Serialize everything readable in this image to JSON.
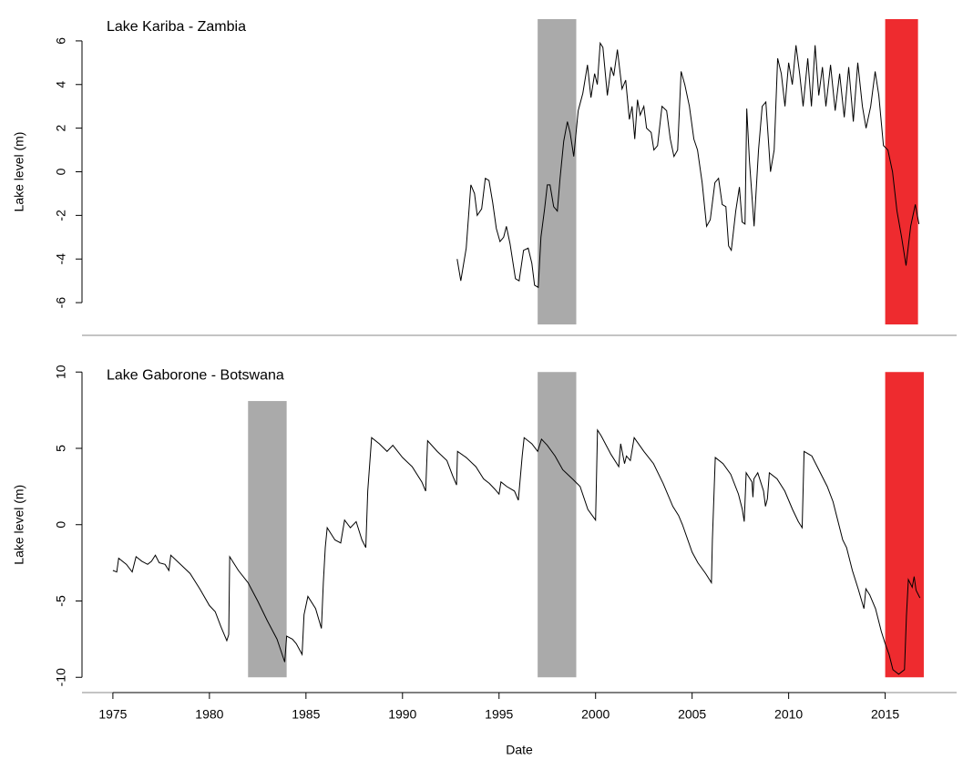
{
  "chart_data": [
    {
      "type": "line",
      "annotation": "Lake Kariba - Zambia",
      "ylabel": "Lake level (m)",
      "xlim": [
        1973.4,
        2018.7
      ],
      "ylim": [
        -7.5,
        7.5
      ],
      "yticks": [
        -6,
        -4,
        -2,
        0,
        2,
        4,
        6
      ],
      "x": [
        1992.83,
        1993.02,
        1993.3,
        1993.54,
        1993.73,
        1993.87,
        1994.1,
        1994.29,
        1994.48,
        1994.67,
        1994.86,
        1995.05,
        1995.24,
        1995.38,
        1995.57,
        1995.85,
        1996.04,
        1996.27,
        1996.51,
        1996.7,
        1996.84,
        1997.03,
        1997.17,
        1997.36,
        1997.5,
        1997.64,
        1997.83,
        1998.02,
        1998.16,
        1998.35,
        1998.54,
        1998.68,
        1998.87,
        1999.1,
        1999.34,
        1999.58,
        1999.76,
        1999.95,
        2000.09,
        2000.24,
        2000.38,
        2000.61,
        2000.8,
        2000.94,
        2001.13,
        2001.37,
        2001.56,
        2001.75,
        2001.89,
        2002.03,
        2002.17,
        2002.31,
        2002.5,
        2002.64,
        2002.88,
        2003.02,
        2003.21,
        2003.44,
        2003.68,
        2003.87,
        2004.06,
        2004.25,
        2004.43,
        2004.62,
        2004.86,
        2005.09,
        2005.28,
        2005.52,
        2005.75,
        2005.94,
        2006.18,
        2006.37,
        2006.56,
        2006.75,
        2006.89,
        2007.03,
        2007.26,
        2007.45,
        2007.59,
        2007.74,
        2007.83,
        2007.97,
        2008.21,
        2008.44,
        2008.63,
        2008.82,
        2009.06,
        2009.25,
        2009.43,
        2009.62,
        2009.81,
        2010.0,
        2010.19,
        2010.38,
        2010.57,
        2010.75,
        2010.99,
        2011.18,
        2011.37,
        2011.56,
        2011.75,
        2011.93,
        2012.17,
        2012.41,
        2012.64,
        2012.88,
        2013.11,
        2013.35,
        2013.58,
        2013.82,
        2014.01,
        2014.25,
        2014.48,
        2014.67,
        2014.91,
        2015.14,
        2015.38,
        2015.61,
        2015.85,
        2016.08,
        2016.32,
        2016.56,
        2016.75
      ],
      "series": [
        {
          "color": "#000000",
          "values": [
            -4.0,
            -5.0,
            -3.5,
            -0.6,
            -1.0,
            -2.0,
            -1.7,
            -0.3,
            -0.4,
            -1.4,
            -2.6,
            -3.2,
            -3.0,
            -2.5,
            -3.3,
            -4.9,
            -5.0,
            -3.6,
            -3.5,
            -4.2,
            -5.2,
            -5.3,
            -3.0,
            -1.7,
            -0.6,
            -0.6,
            -1.6,
            -1.8,
            -0.3,
            1.4,
            2.3,
            1.8,
            0.7,
            2.8,
            3.6,
            4.9,
            3.4,
            4.5,
            4.0,
            5.9,
            5.7,
            3.5,
            4.8,
            4.4,
            5.6,
            3.8,
            4.2,
            2.4,
            3.0,
            1.5,
            3.3,
            2.6,
            3.0,
            2.0,
            1.8,
            1.0,
            1.2,
            3.0,
            2.8,
            1.5,
            0.7,
            1.0,
            4.6,
            4.0,
            3.0,
            1.5,
            1.0,
            -0.5,
            -2.5,
            -2.2,
            -0.5,
            -0.3,
            -1.5,
            -1.6,
            -3.4,
            -3.6,
            -1.8,
            -0.7,
            -2.3,
            -2.4,
            2.9,
            0.5,
            -2.5,
            1.0,
            3.0,
            3.2,
            0.0,
            1.0,
            5.2,
            4.5,
            3.0,
            5.0,
            4.0,
            5.8,
            4.5,
            3.0,
            5.2,
            3.0,
            5.8,
            3.5,
            4.8,
            3.0,
            4.9,
            2.8,
            4.5,
            2.5,
            4.8,
            2.3,
            5.0,
            3.0,
            2.0,
            3.0,
            4.6,
            3.5,
            1.2,
            1.0,
            0.0,
            -1.8,
            -3.0,
            -4.3,
            -2.5,
            -1.5,
            -2.4
          ]
        }
      ],
      "spans": [
        {
          "x": [
            1997,
            1999
          ],
          "y": [
            -7,
            7
          ],
          "color": "#aaaaaa"
        },
        {
          "x": [
            2015,
            2016.7
          ],
          "y": [
            -7,
            7
          ],
          "color": "#ee2b2f"
        }
      ]
    },
    {
      "type": "line",
      "annotation": "Lake Gaborone - Botswana",
      "ylabel": "Lake level (m)",
      "xlabel": "Date",
      "xlim": [
        1973.4,
        2018.7
      ],
      "ylim": [
        -11,
        11
      ],
      "yticks": [
        -10,
        -5,
        0,
        5,
        10
      ],
      "xticks": [
        1975,
        1980,
        1985,
        1990,
        1995,
        2000,
        2005,
        2010,
        2015
      ],
      "x": [
        1975.0,
        1975.2,
        1975.3,
        1975.7,
        1976.0,
        1976.2,
        1976.5,
        1976.8,
        1977.0,
        1977.2,
        1977.4,
        1977.7,
        1977.9,
        1978.0,
        1978.5,
        1979.0,
        1979.5,
        1980.0,
        1980.3,
        1980.6,
        1980.9,
        1981.0,
        1981.05,
        1981.5,
        1982.0,
        1982.5,
        1983.0,
        1983.5,
        1983.9,
        1984.0,
        1984.3,
        1984.5,
        1984.8,
        1984.9,
        1985.1,
        1985.5,
        1985.8,
        1985.9,
        1986.0,
        1986.1,
        1986.5,
        1986.8,
        1987.0,
        1987.3,
        1987.6,
        1987.9,
        1988.1,
        1988.2,
        1988.4,
        1988.8,
        1989.2,
        1989.5,
        1990.0,
        1990.5,
        1991.0,
        1991.2,
        1991.3,
        1991.8,
        1992.3,
        1992.6,
        1992.8,
        1992.85,
        1993.3,
        1993.8,
        1994.2,
        1994.5,
        1994.8,
        1995.0,
        1995.1,
        1995.4,
        1995.8,
        1996.0,
        1996.2,
        1996.3,
        1996.7,
        1997.0,
        1997.2,
        1997.5,
        1997.9,
        1998.3,
        1998.8,
        1999.2,
        1999.6,
        2000.0,
        2000.1,
        2000.3,
        2000.8,
        2001.2,
        2001.3,
        2001.5,
        2001.6,
        2001.8,
        2002.0,
        2002.5,
        2003.0,
        2003.5,
        2004.0,
        2004.3,
        2004.5,
        2005.0,
        2005.3,
        2005.7,
        2006.0,
        2006.05,
        2006.2,
        2006.6,
        2007.0,
        2007.4,
        2007.6,
        2007.7,
        2007.8,
        2008.1,
        2008.15,
        2008.2,
        2008.4,
        2008.7,
        2008.8,
        2008.9,
        2009.0,
        2009.4,
        2009.8,
        2010.2,
        2010.5,
        2010.7,
        2010.8,
        2011.2,
        2011.6,
        2012.0,
        2012.3,
        2012.5,
        2012.8,
        2013.0,
        2013.3,
        2013.6,
        2013.9,
        2014.0,
        2014.2,
        2014.5,
        2014.8,
        2015.0,
        2015.2,
        2015.4,
        2015.7,
        2016.0,
        2016.1,
        2016.2,
        2016.4,
        2016.5,
        2016.6,
        2016.8
      ],
      "series": [
        {
          "color": "#000000",
          "values": [
            -3.0,
            -3.1,
            -2.2,
            -2.6,
            -3.1,
            -2.1,
            -2.4,
            -2.6,
            -2.4,
            -2.0,
            -2.5,
            -2.6,
            -3.0,
            -2.0,
            -2.6,
            -3.2,
            -4.2,
            -5.3,
            -5.7,
            -6.7,
            -7.6,
            -7.2,
            -2.1,
            -3.0,
            -3.8,
            -5.0,
            -6.3,
            -7.5,
            -9.0,
            -7.3,
            -7.5,
            -7.8,
            -8.5,
            -5.9,
            -4.7,
            -5.5,
            -6.8,
            -3.8,
            -1.5,
            -0.2,
            -1.0,
            -1.2,
            0.3,
            -0.2,
            0.2,
            -1.0,
            -1.5,
            2.2,
            5.7,
            5.3,
            4.8,
            5.2,
            4.4,
            3.8,
            2.8,
            2.2,
            5.5,
            4.8,
            4.2,
            3.2,
            2.6,
            4.8,
            4.4,
            3.8,
            3.0,
            2.7,
            2.3,
            2.0,
            2.8,
            2.5,
            2.2,
            1.6,
            4.5,
            5.7,
            5.3,
            4.8,
            5.6,
            5.2,
            4.5,
            3.6,
            3.0,
            2.5,
            1.0,
            0.3,
            6.2,
            5.8,
            4.6,
            3.8,
            5.3,
            4.0,
            4.5,
            4.2,
            5.7,
            4.8,
            4.0,
            2.7,
            1.2,
            0.6,
            0.0,
            -1.8,
            -2.5,
            -3.2,
            -3.8,
            -1.0,
            4.4,
            4.0,
            3.3,
            2.0,
            1.0,
            0.2,
            3.4,
            2.8,
            1.8,
            3.0,
            3.4,
            2.2,
            1.2,
            1.7,
            3.4,
            3.0,
            2.2,
            1.0,
            0.2,
            -0.2,
            4.8,
            4.5,
            3.5,
            2.5,
            1.5,
            0.5,
            -1.0,
            -1.5,
            -3.0,
            -4.2,
            -5.5,
            -4.2,
            -4.6,
            -5.5,
            -7.0,
            -7.8,
            -8.5,
            -9.5,
            -9.8,
            -9.5,
            -6.0,
            -3.6,
            -4.1,
            -3.4,
            -4.3,
            -4.8
          ]
        }
      ],
      "spans": [
        {
          "x": [
            1982,
            1984
          ],
          "y": [
            -10,
            8.1
          ],
          "color": "#aaaaaa"
        },
        {
          "x": [
            1997,
            1999
          ],
          "y": [
            -10,
            10
          ],
          "color": "#aaaaaa"
        },
        {
          "x": [
            2015,
            2017
          ],
          "y": [
            -10,
            10
          ],
          "color": "#ee2b2f"
        }
      ]
    }
  ]
}
